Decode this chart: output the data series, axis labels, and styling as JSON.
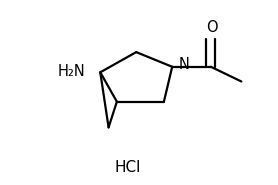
{
  "title": "",
  "hcl_label": "HCl",
  "n_label": "N",
  "o_label": "O",
  "h2n_label": "H₂N",
  "bg_color": "#ffffff",
  "bond_color": "#000000",
  "text_color": "#000000",
  "line_width": 1.6,
  "font_size": 10.5
}
